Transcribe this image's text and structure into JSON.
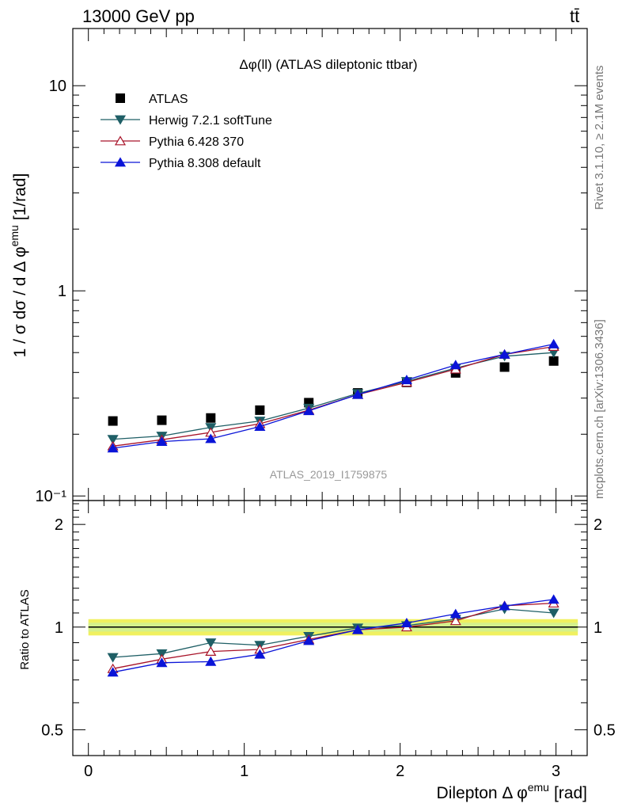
{
  "header": {
    "left": "13000 GeV pp",
    "right": "tt̄"
  },
  "side": {
    "rivet": "Rivet 3.1.10, ≥ 2.1M events",
    "mcplots": "mcplots.cern.ch [arXiv:1306.3436]"
  },
  "chart_data": [
    {
      "type": "scatter",
      "title": "Δφ(ll) (ATLAS dileptonic ttbar)",
      "watermark": "ATLAS_2019_I1759875",
      "xlabel": "Dilepton Δ φ",
      "xlabel_sup": "emu",
      "xlabel_unit": "[rad]",
      "ylabel": "1 / σ  dσ / d Δ φ",
      "ylabel_sup": "emu",
      "ylabel_unit": "[1/rad]",
      "yscale": "log",
      "xlim": [
        -0.1,
        3.2
      ],
      "ylim": [
        0.095,
        19
      ],
      "ytick_labels": [
        "10⁻¹",
        "1",
        "10"
      ],
      "xtick_labels": [
        "0",
        "1",
        "2",
        "3"
      ],
      "legend_position": "top-left",
      "x": [
        0.157,
        0.471,
        0.785,
        1.1,
        1.414,
        1.728,
        2.042,
        2.356,
        2.67,
        2.985
      ],
      "series": [
        {
          "name": "ATLAS",
          "color": "#000000",
          "marker": "square",
          "values": [
            0.232,
            0.234,
            0.24,
            0.262,
            0.285,
            0.318,
            0.358,
            0.398,
            0.425,
            0.455
          ]
        },
        {
          "name": "Herwig 7.2.1 softTune",
          "color": "#1f5f66",
          "marker": "triangle-down",
          "values": [
            0.189,
            0.196,
            0.216,
            0.232,
            0.268,
            0.316,
            0.362,
            0.42,
            0.48,
            0.5
          ]
        },
        {
          "name": "Pythia 6.428 370",
          "color": "#a8142a",
          "marker": "triangle-up-open",
          "values": [
            0.175,
            0.188,
            0.204,
            0.225,
            0.262,
            0.312,
            0.358,
            0.415,
            0.49,
            0.535
          ]
        },
        {
          "name": "Pythia 8.308 default",
          "color": "#0a14d8",
          "marker": "triangle-up",
          "values": [
            0.171,
            0.184,
            0.19,
            0.218,
            0.26,
            0.312,
            0.368,
            0.435,
            0.49,
            0.55
          ]
        }
      ]
    },
    {
      "type": "scatter",
      "ylabel": "Ratio to ATLAS",
      "ylim": [
        0.42,
        2.35
      ],
      "ytick_labels": [
        "0.5",
        "1",
        "2"
      ],
      "band_color": "#f0f060",
      "band_inner_color": "#d4f08c",
      "x": [
        0.157,
        0.471,
        0.785,
        1.1,
        1.414,
        1.728,
        2.042,
        2.356,
        2.67,
        2.985
      ],
      "series": [
        {
          "name": "Herwig 7.2.1 softTune",
          "values": [
            0.815,
            0.836,
            0.9,
            0.885,
            0.94,
            0.995,
            1.01,
            1.055,
            1.13,
            1.1
          ]
        },
        {
          "name": "Pythia 6.428 370",
          "values": [
            0.755,
            0.805,
            0.848,
            0.86,
            0.92,
            0.982,
            1.0,
            1.043,
            1.155,
            1.175
          ]
        },
        {
          "name": "Pythia 8.308 default",
          "values": [
            0.737,
            0.786,
            0.792,
            0.832,
            0.912,
            0.982,
            1.028,
            1.093,
            1.153,
            1.205
          ]
        }
      ]
    }
  ]
}
